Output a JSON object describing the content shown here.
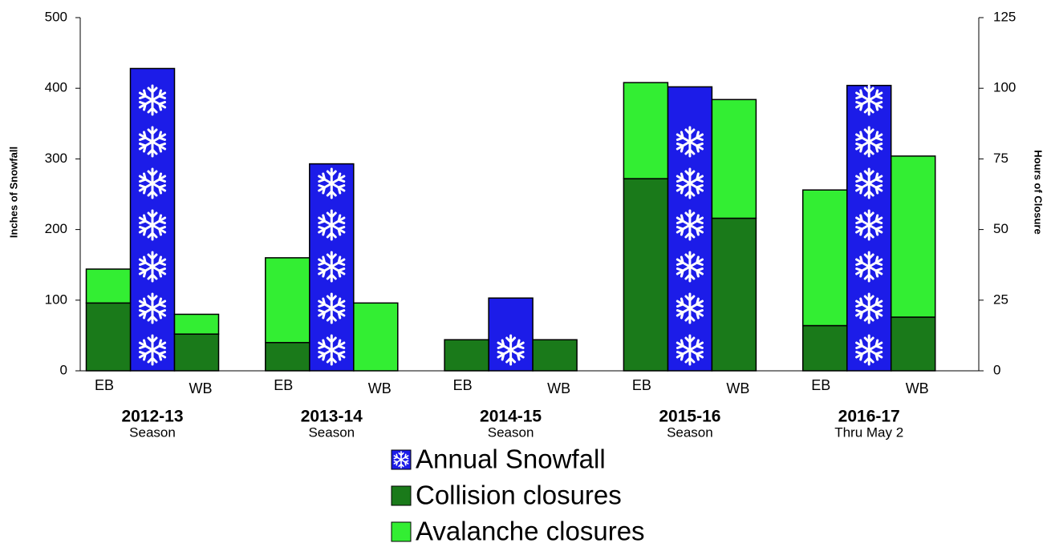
{
  "chart_data": {
    "type": "bar",
    "categories": [
      {
        "label": "2012-13",
        "note": "Season"
      },
      {
        "label": "2013-14",
        "note": "Season"
      },
      {
        "label": "2014-15",
        "note": "Season"
      },
      {
        "label": "2015-16",
        "note": "Season"
      },
      {
        "label": "2016-17",
        "note": "Thru May 2"
      }
    ],
    "directions": [
      "EB",
      "WB"
    ],
    "ylabel": "Inches of Snowfall",
    "y2label": "Hours of Closure",
    "ylim": [
      0,
      500
    ],
    "yticks": [
      0,
      100,
      200,
      300,
      400,
      500
    ],
    "y2lim": [
      0,
      125
    ],
    "y2ticks": [
      0,
      25,
      50,
      75,
      100,
      125
    ],
    "series": [
      {
        "name": "Annual Snowfall",
        "color": "#1c1ce8",
        "values": [
          428,
          293,
          103,
          402,
          404
        ]
      },
      {
        "name": "Collision closures",
        "color": "#1a7a1a",
        "axis": "y2",
        "values": [
          [
            24,
            13
          ],
          [
            10,
            0
          ],
          [
            11,
            11
          ],
          [
            68,
            54
          ],
          [
            16,
            19
          ]
        ]
      },
      {
        "name": "Avalanche closures",
        "color": "#33ee33",
        "axis": "y2",
        "values": [
          [
            12,
            7
          ],
          [
            30,
            24
          ],
          [
            0,
            0
          ],
          [
            34,
            42
          ],
          [
            48,
            57
          ]
        ]
      }
    ]
  }
}
